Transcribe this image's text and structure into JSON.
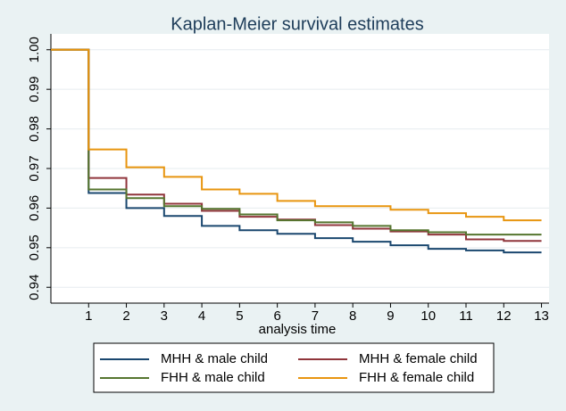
{
  "chart_data": {
    "type": "step",
    "title": "Kaplan-Meier survival estimates",
    "x_label": "analysis time",
    "x": [
      0,
      1,
      2,
      3,
      4,
      5,
      6,
      7,
      8,
      9,
      10,
      11,
      12,
      13
    ],
    "series": [
      {
        "name": "MHH & male child",
        "color": "#1a476f",
        "values": [
          1,
          0.9638,
          0.96,
          0.958,
          0.9555,
          0.9544,
          0.9535,
          0.9524,
          0.9515,
          0.9506,
          0.9497,
          0.9493,
          0.9488,
          0.9488
        ]
      },
      {
        "name": "MHH & female child",
        "color": "#90353b",
        "values": [
          1,
          0.9676,
          0.9634,
          0.9611,
          0.9593,
          0.9578,
          0.9571,
          0.9557,
          0.9548,
          0.9541,
          0.9533,
          0.9521,
          0.9517,
          0.9517
        ]
      },
      {
        "name": "FHH & male child",
        "color": "#55752f",
        "values": [
          1,
          0.9647,
          0.9625,
          0.9605,
          0.9598,
          0.9584,
          0.9569,
          0.9564,
          0.9555,
          0.9544,
          0.9539,
          0.9533,
          0.9533,
          0.9533
        ]
      },
      {
        "name": "FHH & female child",
        "color": "#e8950f",
        "values": [
          1,
          0.9748,
          0.9703,
          0.9679,
          0.9647,
          0.9636,
          0.9618,
          0.9605,
          0.9605,
          0.9596,
          0.9587,
          0.9578,
          0.9569,
          0.9569
        ]
      }
    ],
    "xlim": [
      0,
      13.2
    ],
    "xticks": [
      1,
      2,
      3,
      4,
      5,
      6,
      7,
      8,
      9,
      10,
      11,
      12,
      13
    ],
    "ylim": [
      0.936,
      1.004
    ],
    "yticks": [
      0.94,
      0.95,
      0.96,
      0.97,
      0.98,
      0.99,
      {
        "value": 1,
        "label": "1.00"
      }
    ],
    "grid": true,
    "legend": "bottom"
  }
}
